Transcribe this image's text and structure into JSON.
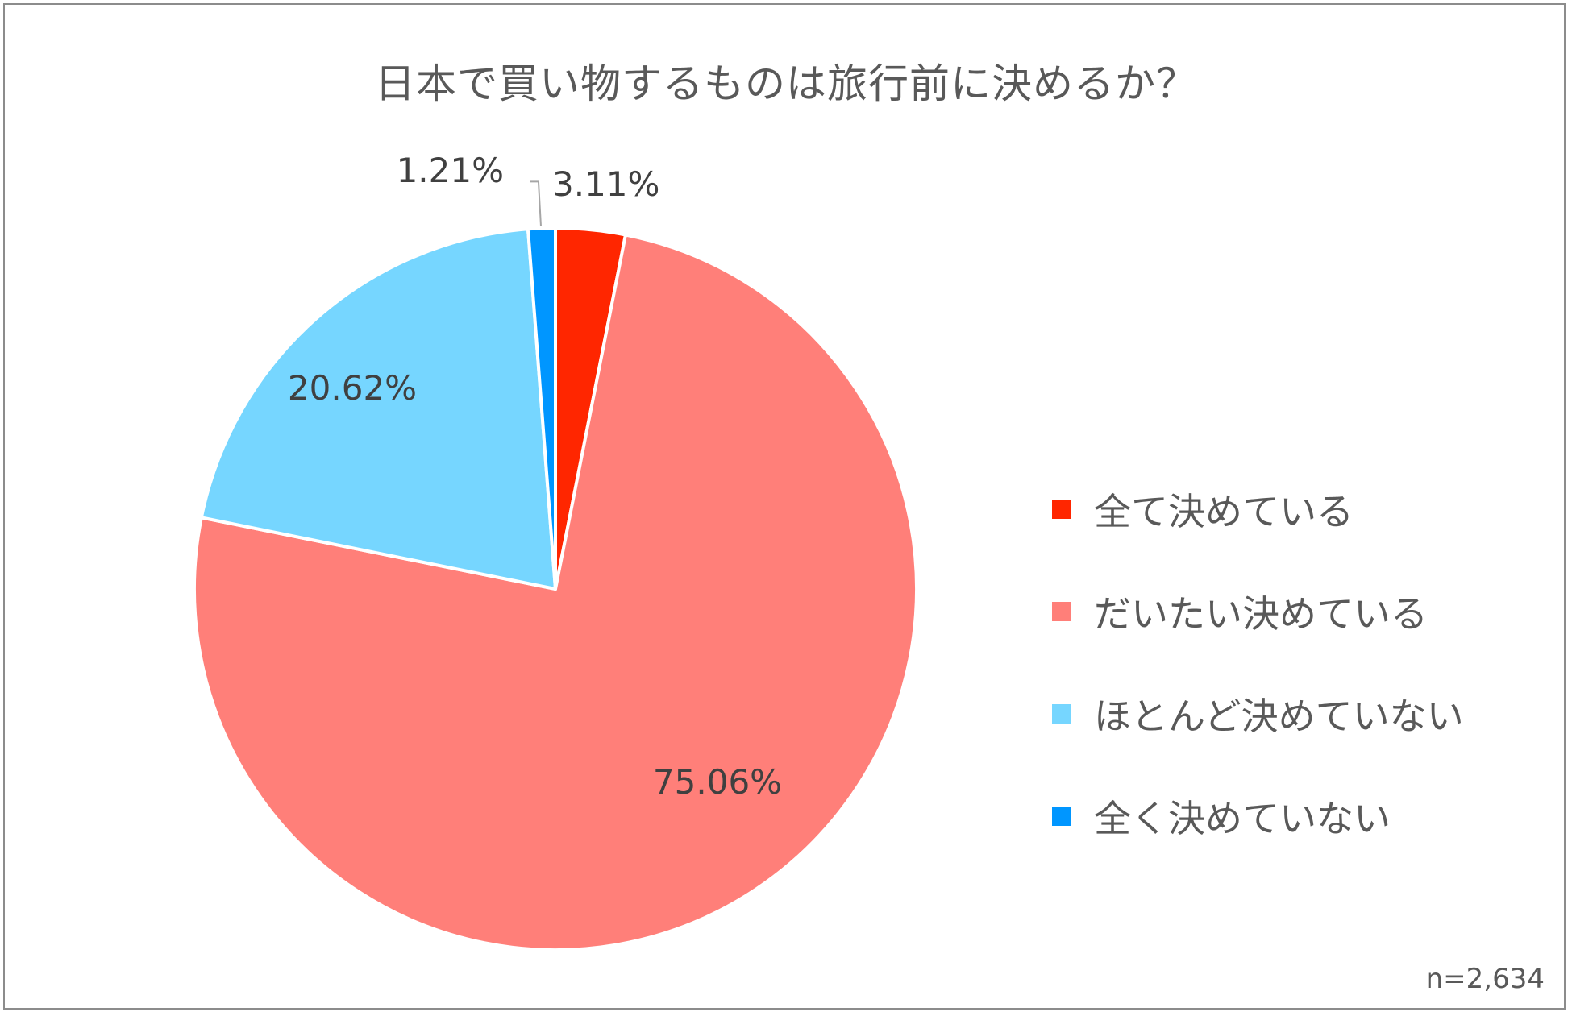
{
  "chart_data": {
    "type": "pie",
    "title": "日本で買い物するものは旅行前に決めるか？",
    "slices": [
      {
        "label": "全て決めている",
        "value": 3.11,
        "value_label": "3.11%",
        "color": "#ff2600"
      },
      {
        "label": "だいたい決めている",
        "value": 75.06,
        "value_label": "75.06%",
        "color": "#ff7f79"
      },
      {
        "label": "ほとんど決めていない",
        "value": 20.62,
        "value_label": "20.62%",
        "color": "#76d6ff"
      },
      {
        "label": "全く決めていない",
        "value": 1.21,
        "value_label": "1.21%",
        "color": "#0096ff"
      }
    ],
    "legend_position": "right",
    "note": "n=2,634"
  }
}
